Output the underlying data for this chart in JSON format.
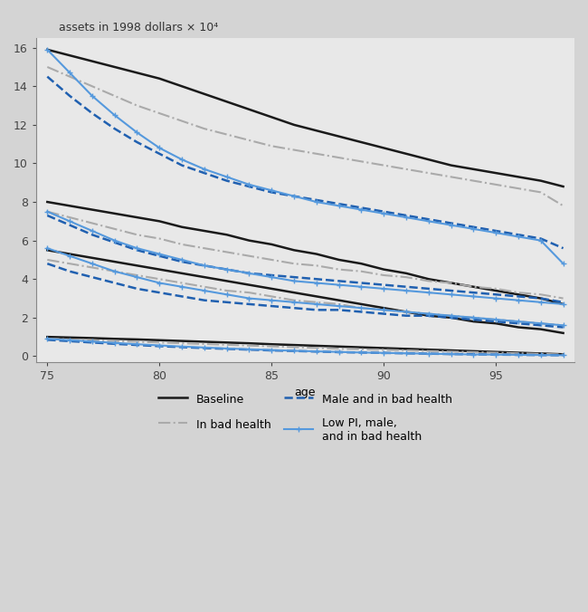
{
  "ages": [
    75,
    76,
    77,
    78,
    79,
    80,
    81,
    82,
    83,
    84,
    85,
    86,
    87,
    88,
    89,
    90,
    91,
    92,
    93,
    94,
    95,
    96,
    97,
    98
  ],
  "series": {
    "baseline": {
      "label": "Baseline",
      "color": "#1a1a1a",
      "linestyle": "solid",
      "marker": null,
      "linewidth": 1.8,
      "groups": [
        [
          15.9,
          15.6,
          15.3,
          15.0,
          14.7,
          14.4,
          14.0,
          13.6,
          13.2,
          12.8,
          12.4,
          12.0,
          11.7,
          11.4,
          11.1,
          10.8,
          10.5,
          10.2,
          9.9,
          9.7,
          9.5,
          9.3,
          9.1,
          8.8
        ],
        [
          8.0,
          7.8,
          7.6,
          7.4,
          7.2,
          7.0,
          6.7,
          6.5,
          6.3,
          6.0,
          5.8,
          5.5,
          5.3,
          5.0,
          4.8,
          4.5,
          4.3,
          4.0,
          3.8,
          3.6,
          3.4,
          3.2,
          3.0,
          2.7
        ],
        [
          5.5,
          5.3,
          5.1,
          4.9,
          4.7,
          4.5,
          4.3,
          4.1,
          3.9,
          3.7,
          3.5,
          3.3,
          3.1,
          2.9,
          2.7,
          2.5,
          2.3,
          2.1,
          2.0,
          1.8,
          1.7,
          1.5,
          1.4,
          1.2
        ],
        [
          1.0,
          0.97,
          0.94,
          0.9,
          0.87,
          0.83,
          0.79,
          0.75,
          0.71,
          0.67,
          0.62,
          0.58,
          0.54,
          0.5,
          0.46,
          0.42,
          0.38,
          0.34,
          0.3,
          0.26,
          0.22,
          0.18,
          0.14,
          0.1
        ]
      ]
    },
    "bad_health": {
      "label": "In bad health",
      "color": "#aaaaaa",
      "linestyle": "dashdot",
      "marker": null,
      "linewidth": 1.5,
      "groups": [
        [
          15.0,
          14.5,
          14.0,
          13.5,
          13.0,
          12.6,
          12.2,
          11.8,
          11.5,
          11.2,
          10.9,
          10.7,
          10.5,
          10.3,
          10.1,
          9.9,
          9.7,
          9.5,
          9.3,
          9.1,
          8.9,
          8.7,
          8.5,
          7.8
        ],
        [
          7.5,
          7.2,
          6.9,
          6.6,
          6.3,
          6.1,
          5.8,
          5.6,
          5.4,
          5.2,
          5.0,
          4.8,
          4.7,
          4.5,
          4.4,
          4.2,
          4.1,
          3.9,
          3.8,
          3.6,
          3.5,
          3.3,
          3.2,
          3.0
        ],
        [
          5.0,
          4.8,
          4.6,
          4.4,
          4.2,
          4.0,
          3.8,
          3.6,
          3.4,
          3.3,
          3.1,
          2.9,
          2.8,
          2.7,
          2.5,
          2.4,
          2.3,
          2.2,
          2.1,
          2.0,
          1.9,
          1.8,
          1.7,
          1.6
        ],
        [
          0.9,
          0.87,
          0.83,
          0.79,
          0.75,
          0.71,
          0.67,
          0.63,
          0.59,
          0.55,
          0.51,
          0.47,
          0.43,
          0.39,
          0.36,
          0.33,
          0.3,
          0.27,
          0.24,
          0.21,
          0.18,
          0.15,
          0.12,
          0.09
        ]
      ]
    },
    "male_bad_health": {
      "label": "Male and in bad health",
      "color": "#2060b0",
      "linestyle": "dashed",
      "marker": null,
      "linewidth": 1.8,
      "groups": [
        [
          14.5,
          13.5,
          12.6,
          11.8,
          11.1,
          10.5,
          9.9,
          9.5,
          9.1,
          8.8,
          8.5,
          8.3,
          8.1,
          7.9,
          7.7,
          7.5,
          7.3,
          7.1,
          6.9,
          6.7,
          6.5,
          6.3,
          6.1,
          5.6
        ],
        [
          7.3,
          6.8,
          6.3,
          5.9,
          5.5,
          5.2,
          4.9,
          4.7,
          4.5,
          4.3,
          4.2,
          4.1,
          4.0,
          3.9,
          3.8,
          3.7,
          3.6,
          3.5,
          3.4,
          3.3,
          3.2,
          3.1,
          3.0,
          2.8
        ],
        [
          4.8,
          4.4,
          4.1,
          3.8,
          3.5,
          3.3,
          3.1,
          2.9,
          2.8,
          2.7,
          2.6,
          2.5,
          2.4,
          2.4,
          2.3,
          2.2,
          2.1,
          2.1,
          2.0,
          1.9,
          1.8,
          1.7,
          1.6,
          1.5
        ],
        [
          0.85,
          0.78,
          0.71,
          0.64,
          0.58,
          0.52,
          0.47,
          0.42,
          0.38,
          0.34,
          0.3,
          0.27,
          0.24,
          0.21,
          0.19,
          0.17,
          0.15,
          0.13,
          0.11,
          0.1,
          0.08,
          0.07,
          0.06,
          0.05
        ]
      ]
    },
    "low_pi_male_bad": {
      "label": "Low PI, male,\nand in bad health",
      "color": "#5599dd",
      "linestyle": "solid",
      "marker": "+",
      "markersize": 5,
      "markevery": 1,
      "linewidth": 1.5,
      "groups": [
        [
          15.9,
          14.7,
          13.5,
          12.5,
          11.6,
          10.8,
          10.2,
          9.7,
          9.3,
          8.9,
          8.6,
          8.3,
          8.0,
          7.8,
          7.6,
          7.4,
          7.2,
          7.0,
          6.8,
          6.6,
          6.4,
          6.2,
          6.0,
          4.8
        ],
        [
          7.5,
          7.0,
          6.5,
          6.0,
          5.6,
          5.3,
          5.0,
          4.7,
          4.5,
          4.3,
          4.1,
          3.9,
          3.8,
          3.7,
          3.6,
          3.5,
          3.4,
          3.3,
          3.2,
          3.1,
          3.0,
          2.9,
          2.8,
          2.7
        ],
        [
          5.6,
          5.2,
          4.8,
          4.4,
          4.1,
          3.8,
          3.6,
          3.4,
          3.2,
          3.0,
          2.9,
          2.8,
          2.7,
          2.6,
          2.5,
          2.4,
          2.3,
          2.2,
          2.1,
          2.0,
          1.9,
          1.8,
          1.7,
          1.6
        ],
        [
          0.9,
          0.83,
          0.76,
          0.69,
          0.62,
          0.56,
          0.5,
          0.45,
          0.4,
          0.36,
          0.32,
          0.28,
          0.25,
          0.22,
          0.19,
          0.17,
          0.15,
          0.13,
          0.11,
          0.09,
          0.08,
          0.07,
          0.06,
          0.05
        ]
      ]
    }
  },
  "xlim": [
    74.5,
    98.5
  ],
  "ylim": [
    -0.3,
    16.5
  ],
  "yticks": [
    0,
    2,
    4,
    6,
    8,
    10,
    12,
    14,
    16
  ],
  "xticks": [
    75,
    80,
    85,
    90,
    95
  ],
  "xlabel": "age",
  "ylabel": "assets in 1998 dollars × 10⁴",
  "background_color": "#d4d4d4",
  "plot_bg_color": "#e8e8e8",
  "legend_fontsize": 9,
  "axis_fontsize": 9,
  "label_fontsize": 9
}
